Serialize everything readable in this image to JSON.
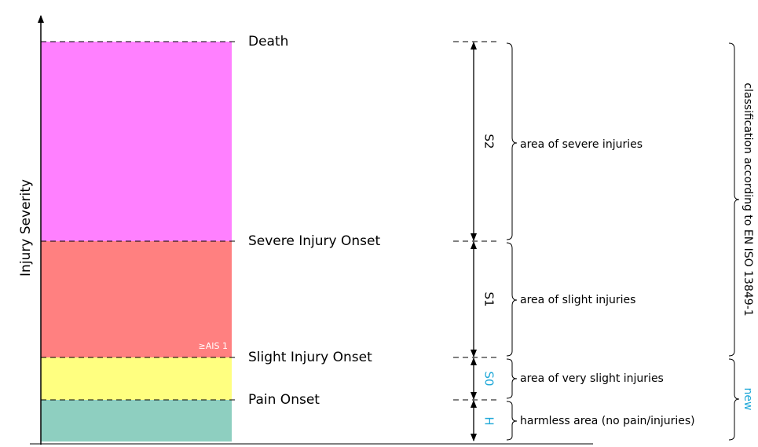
{
  "axis_label": "Injury Severity",
  "levels": [
    {
      "label": "Death"
    },
    {
      "label": "Severe Injury Onset"
    },
    {
      "label": "Slight Injury Onset",
      "note": "≥AIS 1"
    },
    {
      "label": "Pain Onset"
    }
  ],
  "ranges": [
    {
      "code": "S2",
      "description": "area of severe injuries"
    },
    {
      "code": "S1",
      "description": "area of slight injuries"
    },
    {
      "code": "S0",
      "description": "area of very slight injuries"
    },
    {
      "code": "H",
      "description": "harmless area (no pain/injuries)"
    }
  ],
  "groups": [
    {
      "label": "classification according to EN ISO 13849-1"
    },
    {
      "label": "new"
    }
  ]
}
